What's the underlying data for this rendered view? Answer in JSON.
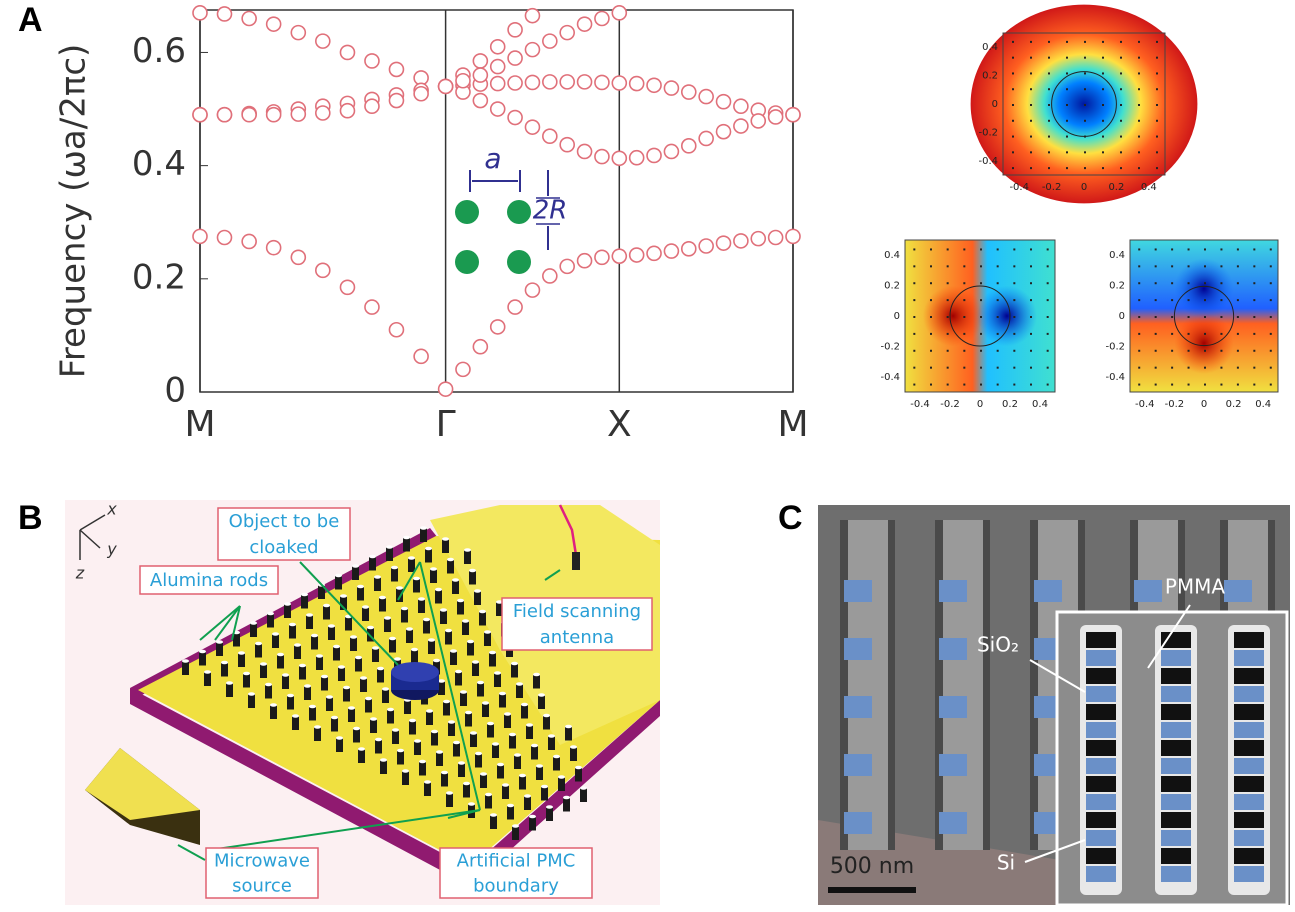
{
  "panels": [
    {
      "label": "A"
    },
    {
      "label": "B"
    },
    {
      "label": "C"
    }
  ],
  "chart_data": {
    "type": "scatter",
    "ylabel": "Frequency (ωa/2πc)",
    "x": [
      0,
      0.141,
      0.283,
      0.424,
      0.566,
      0.707,
      0.849,
      0.99,
      1.131,
      1.273,
      1.414,
      1.514,
      1.614,
      1.714,
      1.814,
      1.914,
      2.014,
      2.114,
      2.214,
      2.314,
      2.414,
      2.514,
      2.614,
      2.714,
      2.814,
      2.914,
      3.014,
      3.114,
      3.214,
      3.314,
      3.414
    ],
    "xlim": [
      0,
      3.414
    ],
    "xticks": [
      {
        "value": 0,
        "label": "M"
      },
      {
        "value": 1.414,
        "label": "Γ"
      },
      {
        "value": 2.414,
        "label": "X"
      },
      {
        "value": 3.414,
        "label": "M"
      }
    ],
    "xgrid": true,
    "ylim": [
      0,
      0.675
    ],
    "yticks": [
      0,
      0.2,
      0.4,
      0.6
    ],
    "marker": "open-circle",
    "series": [
      {
        "color": "#e0707a",
        "values": [
          0.275,
          0.273,
          0.266,
          0.255,
          0.238,
          0.215,
          0.185,
          0.15,
          0.11,
          0.063,
          0.005,
          0.04,
          0.08,
          0.115,
          0.15,
          0.18,
          0.205,
          0.222,
          0.232,
          0.238,
          0.24,
          0.242,
          0.245,
          0.249,
          0.253,
          0.258,
          0.263,
          0.267,
          0.271,
          0.273,
          0.275
        ]
      },
      {
        "color": "#e0707a",
        "values": [
          0.67,
          0.668,
          0.66,
          0.65,
          0.635,
          0.62,
          0.6,
          0.585,
          0.57,
          0.555,
          0.54,
          0.56,
          0.585,
          0.61,
          0.64,
          0.665,
          null,
          null,
          null,
          null,
          null,
          null,
          null,
          null,
          null,
          null,
          null,
          null,
          null,
          null,
          null
        ]
      },
      {
        "color": "#e0707a",
        "values": [
          0.49,
          0.49,
          0.492,
          0.495,
          0.5,
          0.505,
          0.51,
          0.517,
          0.525,
          0.533,
          0.54,
          0.542,
          0.544,
          0.545,
          0.546,
          0.547,
          0.548,
          0.548,
          0.548,
          0.547,
          0.546,
          0.545,
          0.542,
          0.537,
          0.53,
          0.522,
          0.513,
          0.505,
          0.498,
          0.493,
          0.49
        ]
      },
      {
        "color": "#e0707a",
        "values": [
          0.49,
          0.49,
          0.49,
          0.49,
          0.491,
          0.493,
          0.497,
          0.505,
          0.515,
          0.527,
          0.54,
          0.53,
          0.515,
          0.5,
          0.485,
          0.468,
          0.452,
          0.437,
          0.425,
          0.416,
          0.413,
          0.414,
          0.418,
          0.425,
          0.435,
          0.448,
          0.46,
          0.47,
          0.479,
          0.486,
          0.49
        ]
      },
      {
        "color": "#e0707a",
        "values": [
          null,
          null,
          null,
          null,
          null,
          null,
          null,
          null,
          null,
          null,
          null,
          0.55,
          0.56,
          0.575,
          0.59,
          0.605,
          0.62,
          0.635,
          0.65,
          0.66,
          0.67,
          null,
          null,
          null,
          null,
          null,
          null,
          null,
          null,
          null,
          null
        ]
      }
    ],
    "inset_labels": [
      "a",
      "2R"
    ]
  },
  "field_maps": {
    "ticks": [
      -0.4,
      -0.2,
      0,
      0.2,
      0.4
    ],
    "range": [
      -0.5,
      0.5
    ]
  },
  "panel_b": {
    "axes": [
      "x",
      "y",
      "z"
    ],
    "object": [
      "Object to be",
      "cloaked"
    ],
    "rods": "Alumina rods",
    "antenna": [
      "Field scanning",
      "antenna"
    ],
    "source": [
      "Microwave",
      "source"
    ],
    "boundary": [
      "Artificial PMC",
      "boundary"
    ]
  },
  "panel_c": {
    "pmma": "PMMA",
    "sio2": "SiO₂",
    "si": "Si",
    "scale": "500 nm"
  }
}
